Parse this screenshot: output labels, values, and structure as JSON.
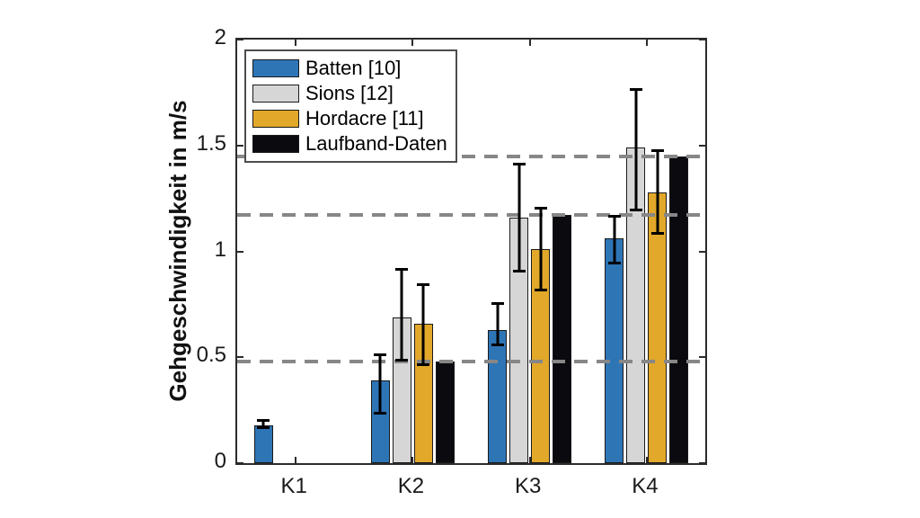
{
  "figure": {
    "background_color": "#ffffff",
    "axes_color": "#2b2b2b"
  },
  "chart_data": {
    "type": "bar",
    "title": "",
    "xlabel": "",
    "ylabel": "Gehgeschwindigkeit in m/s",
    "ylim": [
      0,
      2
    ],
    "yticks": [
      0,
      0.5,
      1,
      1.5,
      2
    ],
    "ytick_labels": [
      "0",
      "0.5",
      "1",
      "1.5",
      "2"
    ],
    "categories": [
      "K1",
      "K2",
      "K3",
      "K4"
    ],
    "grid": false,
    "legend_position": "top-left",
    "reference_lines": {
      "style": "dashed",
      "color": "#878787",
      "values": [
        0.48,
        1.17,
        1.45
      ]
    },
    "series": [
      {
        "name": "Batten [10]",
        "color": "#2E75B6",
        "values": [
          0.18,
          0.39,
          0.63,
          1.06
        ],
        "err_low": [
          0.16,
          0.23,
          0.55,
          0.94
        ],
        "err_high": [
          0.21,
          0.52,
          0.76,
          1.17
        ]
      },
      {
        "name": "Sions [12]",
        "color": "#D6D6D6",
        "values": [
          null,
          0.69,
          1.16,
          1.49
        ],
        "err_low": [
          null,
          0.48,
          0.9,
          1.19
        ],
        "err_high": [
          null,
          0.92,
          1.42,
          1.77
        ]
      },
      {
        "name": "Hordacre [11]",
        "color": "#E2A82A",
        "values": [
          null,
          0.66,
          1.01,
          1.28
        ],
        "err_low": [
          null,
          0.46,
          0.81,
          1.08
        ],
        "err_high": [
          null,
          0.85,
          1.21,
          1.48
        ]
      },
      {
        "name": "Laufband-Daten",
        "color": "#0A0A0F",
        "values": [
          null,
          0.48,
          1.17,
          1.45
        ],
        "err_low": [
          null,
          null,
          null,
          null
        ],
        "err_high": [
          null,
          null,
          null,
          null
        ]
      }
    ]
  }
}
